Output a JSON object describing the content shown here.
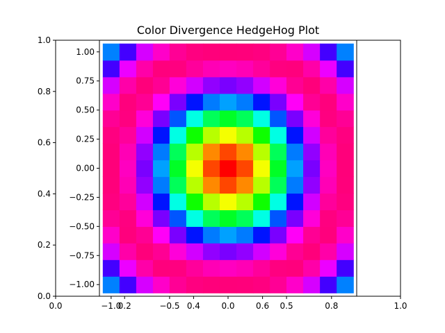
{
  "chart_data": {
    "type": "heatmap",
    "title": "Color Divergence HedgeHog Plot",
    "colormap": "hsv",
    "grid": false,
    "outer_axes": {
      "xlim": [
        0.0,
        1.0
      ],
      "ylim": [
        0.0,
        1.0
      ],
      "xticks": [
        0.0,
        0.2,
        0.4,
        0.6,
        0.8,
        1.0
      ],
      "yticks": [
        0.0,
        0.2,
        0.4,
        0.6,
        0.8,
        1.0
      ],
      "xtick_labels": [
        "0.0",
        "0.2",
        "0.4",
        "0.6",
        "0.8",
        "1.0"
      ],
      "ytick_labels": [
        "0.0",
        "0.2",
        "0.4",
        "0.6",
        "0.8",
        "1.0"
      ]
    },
    "inner_axes": {
      "xlim": [
        -1.1,
        1.1
      ],
      "ylim": [
        -1.1,
        1.1
      ],
      "xticks": [
        -1.0,
        -0.5,
        0.0,
        0.5
      ],
      "xtick_labels": [
        "−1.0",
        "−0.5",
        "0.0",
        "0.5"
      ],
      "yticks": [
        -1.0,
        -0.75,
        -0.5,
        -0.25,
        0.0,
        0.25,
        0.5,
        0.75,
        1.0
      ],
      "ytick_labels": [
        "−1.00",
        "−0.75",
        "−0.50",
        "−0.25",
        "0.00",
        "0.25",
        "0.50",
        "0.75",
        "1.00"
      ]
    },
    "grid_cells": {
      "x_centers": [
        -1.0,
        -0.857,
        -0.714,
        -0.571,
        -0.429,
        -0.286,
        -0.143,
        0.0,
        0.143,
        0.286,
        0.429,
        0.571,
        0.714,
        0.857,
        1.0
      ],
      "y_centers": [
        -1.0,
        -0.857,
        -0.714,
        -0.571,
        -0.429,
        -0.286,
        -0.143,
        0.0,
        0.143,
        0.286,
        0.429,
        0.571,
        0.714,
        0.857,
        1.0
      ],
      "value_function": "hue = cos(pi * sqrt(x^2 + y^2))"
    }
  }
}
